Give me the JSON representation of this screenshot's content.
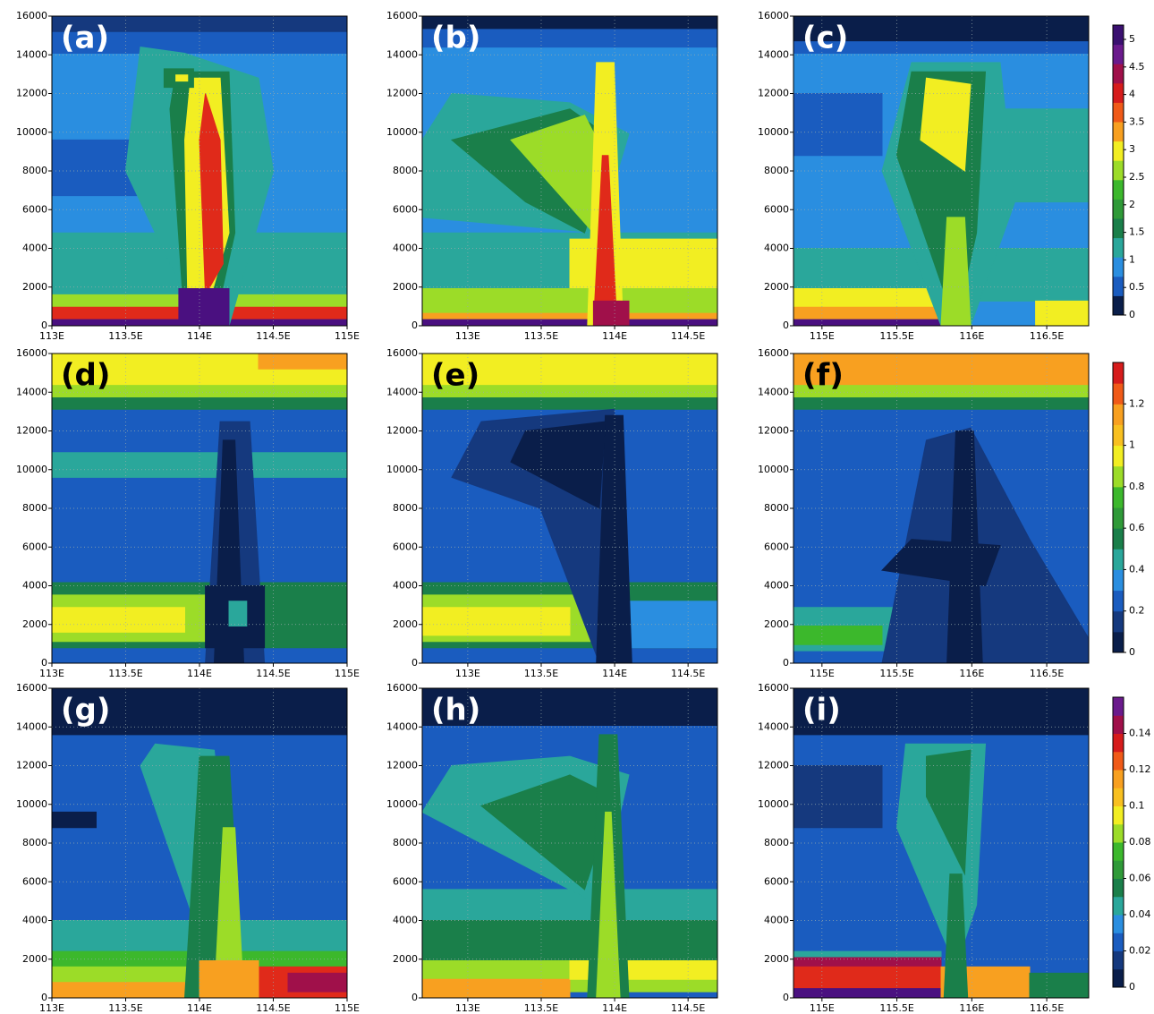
{
  "chart_data": [
    {
      "type": "contour",
      "label": "(a)",
      "label_color": "#ffffff",
      "colorbar": 0,
      "xlim": [
        113,
        115
      ],
      "xticks": [
        {
          "value": 113,
          "label": "113E"
        },
        {
          "value": 113.5,
          "label": "113.5E"
        },
        {
          "value": 114,
          "label": "114E"
        },
        {
          "value": 114.5,
          "label": "114.5E"
        },
        {
          "value": 115,
          "label": "115E"
        }
      ],
      "ylim": [
        0,
        16000
      ],
      "yticks": [
        0,
        2000,
        4000,
        6000,
        8000,
        10000,
        12000,
        14000,
        16000
      ],
      "grid": true
    },
    {
      "type": "contour",
      "label": "(b)",
      "label_color": "#ffffff",
      "colorbar": 0,
      "xlim": [
        112.69,
        114.7
      ],
      "xticks": [
        {
          "value": 113,
          "label": "113E"
        },
        {
          "value": 113.5,
          "label": "113.5E"
        },
        {
          "value": 114,
          "label": "114E"
        },
        {
          "value": 114.5,
          "label": "114.5E"
        }
      ],
      "ylim": [
        0,
        16000
      ],
      "yticks": [
        0,
        2000,
        4000,
        6000,
        8000,
        10000,
        12000,
        14000,
        16000
      ],
      "grid": true
    },
    {
      "type": "contour",
      "label": "(c)",
      "label_color": "#ffffff",
      "colorbar": 0,
      "xlim": [
        114.81,
        116.78
      ],
      "xticks": [
        {
          "value": 115,
          "label": "115E"
        },
        {
          "value": 115.5,
          "label": "115.5E"
        },
        {
          "value": 116,
          "label": "116E"
        },
        {
          "value": 116.5,
          "label": "116.5E"
        }
      ],
      "ylim": [
        0,
        16000
      ],
      "yticks": [
        0,
        2000,
        4000,
        6000,
        8000,
        10000,
        12000,
        14000,
        16000
      ],
      "grid": true
    },
    {
      "type": "contour",
      "label": "(d)",
      "label_color": "#000000",
      "colorbar": 1,
      "xlim": [
        113,
        115
      ],
      "xticks": [
        {
          "value": 113,
          "label": "113E"
        },
        {
          "value": 113.5,
          "label": "113.5E"
        },
        {
          "value": 114,
          "label": "114E"
        },
        {
          "value": 114.5,
          "label": "114.5E"
        },
        {
          "value": 115,
          "label": "115E"
        }
      ],
      "ylim": [
        0,
        16000
      ],
      "yticks": [
        0,
        2000,
        4000,
        6000,
        8000,
        10000,
        12000,
        14000,
        16000
      ],
      "grid": true
    },
    {
      "type": "contour",
      "label": "(e)",
      "label_color": "#000000",
      "colorbar": 1,
      "xlim": [
        112.69,
        114.7
      ],
      "xticks": [
        {
          "value": 113,
          "label": "113E"
        },
        {
          "value": 113.5,
          "label": "113.5E"
        },
        {
          "value": 114,
          "label": "114E"
        },
        {
          "value": 114.5,
          "label": "114.5E"
        }
      ],
      "ylim": [
        0,
        16000
      ],
      "yticks": [
        0,
        2000,
        4000,
        6000,
        8000,
        10000,
        12000,
        14000,
        16000
      ],
      "grid": true
    },
    {
      "type": "contour",
      "label": "(f)",
      "label_color": "#000000",
      "colorbar": 1,
      "xlim": [
        114.81,
        116.78
      ],
      "xticks": [
        {
          "value": 115,
          "label": "115E"
        },
        {
          "value": 115.5,
          "label": "115.5E"
        },
        {
          "value": 116,
          "label": "116E"
        },
        {
          "value": 116.5,
          "label": "116.5E"
        }
      ],
      "ylim": [
        0,
        16000
      ],
      "yticks": [
        0,
        2000,
        4000,
        6000,
        8000,
        10000,
        12000,
        14000,
        16000
      ],
      "grid": true
    },
    {
      "type": "contour",
      "label": "(g)",
      "label_color": "#ffffff",
      "colorbar": 2,
      "xlim": [
        113,
        115
      ],
      "xticks": [
        {
          "value": 113,
          "label": "113E"
        },
        {
          "value": 113.5,
          "label": "113.5E"
        },
        {
          "value": 114,
          "label": "114E"
        },
        {
          "value": 114.5,
          "label": "114.5E"
        },
        {
          "value": 115,
          "label": "115E"
        }
      ],
      "ylim": [
        0,
        16000
      ],
      "yticks": [
        0,
        2000,
        4000,
        6000,
        8000,
        10000,
        12000,
        14000,
        16000
      ],
      "grid": true
    },
    {
      "type": "contour",
      "label": "(h)",
      "label_color": "#ffffff",
      "colorbar": 2,
      "xlim": [
        112.69,
        114.7
      ],
      "xticks": [
        {
          "value": 113,
          "label": "113E"
        },
        {
          "value": 113.5,
          "label": "113.5E"
        },
        {
          "value": 114,
          "label": "114E"
        },
        {
          "value": 114.5,
          "label": "114.5E"
        }
      ],
      "ylim": [
        0,
        16000
      ],
      "yticks": [
        0,
        2000,
        4000,
        6000,
        8000,
        10000,
        12000,
        14000,
        16000
      ],
      "grid": true
    },
    {
      "type": "contour",
      "label": "(i)",
      "label_color": "#ffffff",
      "colorbar": 2,
      "xlim": [
        114.81,
        116.78
      ],
      "xticks": [
        {
          "value": 115,
          "label": "115E"
        },
        {
          "value": 115.5,
          "label": "115.5E"
        },
        {
          "value": 116,
          "label": "116E"
        },
        {
          "value": 116.5,
          "label": "116.5E"
        }
      ],
      "ylim": [
        0,
        16000
      ],
      "yticks": [
        0,
        2000,
        4000,
        6000,
        8000,
        10000,
        12000,
        14000,
        16000
      ],
      "grid": true
    }
  ],
  "colorbars": [
    {
      "lim": [
        0,
        5.26
      ],
      "ticks": [
        0,
        0.5,
        1,
        1.5,
        2,
        2.5,
        3,
        3.5,
        4,
        4.5,
        5
      ],
      "colors": [
        "#0a1e4a",
        "#1a5cbf",
        "#2a8ee0",
        "#2aa79b",
        "#1a7f4a",
        "#2f9a38",
        "#3cb82c",
        "#9cdc28",
        "#f2ee22",
        "#f8a020",
        "#f05a18",
        "#d61c1c",
        "#a0104a",
        "#6a1a8c",
        "#3a1070"
      ]
    },
    {
      "lim": [
        0,
        1.4
      ],
      "ticks": [
        0,
        0.2,
        0.4,
        0.6,
        0.8,
        1,
        1.2
      ],
      "colors": [
        "#0a1e4a",
        "#15397e",
        "#1a5cbf",
        "#2a8ee0",
        "#2aa79b",
        "#1a7f4a",
        "#2f9a38",
        "#3cb82c",
        "#9cdc28",
        "#f2ee22",
        "#f8c020",
        "#f8a020",
        "#f05a18",
        "#d61c1c"
      ]
    },
    {
      "lim": [
        0,
        0.16
      ],
      "ticks": [
        0,
        0.02,
        0.04,
        0.06,
        0.08,
        0.1,
        0.12,
        0.14
      ],
      "colors": [
        "#0a1e4a",
        "#15397e",
        "#1a5cbf",
        "#2a8ee0",
        "#2aa79b",
        "#1a7f4a",
        "#2f9a38",
        "#3cb82c",
        "#9cdc28",
        "#f2ee22",
        "#f8c020",
        "#f8a020",
        "#f05a18",
        "#d61c1c",
        "#a0104a",
        "#6a1a8c"
      ]
    }
  ]
}
